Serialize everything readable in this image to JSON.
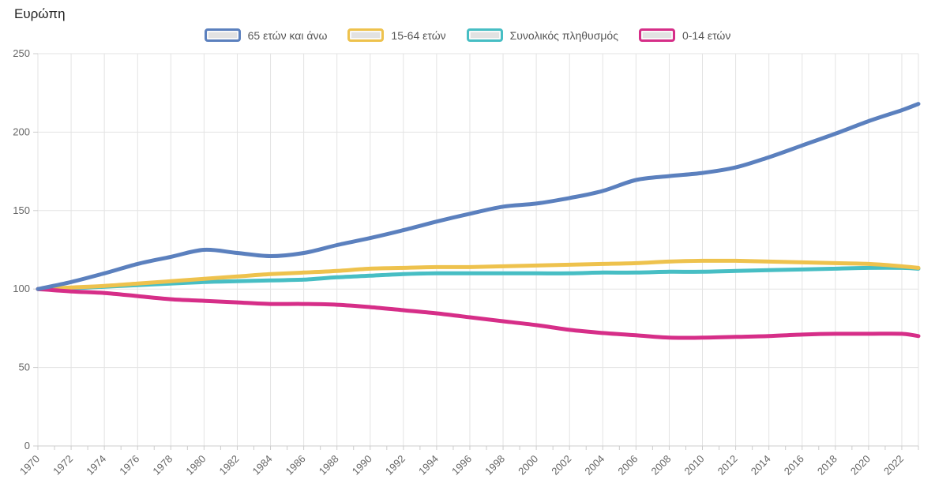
{
  "title": "Ευρώπη",
  "legend": {
    "position": "top",
    "items": [
      {
        "label": "65 ετών και άνω",
        "color": "#5b80be"
      },
      {
        "label": "15-64 ετών",
        "color": "#eec24d"
      },
      {
        "label": "Συνολικός πληθυσμός",
        "color": "#47bec4"
      },
      {
        "label": "0-14 ετών",
        "color": "#d62e88"
      }
    ]
  },
  "chart_data": {
    "type": "line",
    "title": "Ευρώπη",
    "x": [
      1970,
      1972,
      1974,
      1976,
      1978,
      1980,
      1982,
      1984,
      1986,
      1988,
      1990,
      1992,
      1994,
      1996,
      1998,
      2000,
      2002,
      2004,
      2006,
      2008,
      2010,
      2012,
      2014,
      2016,
      2018,
      2020,
      2022,
      2023
    ],
    "x_tick_labels": [
      "1970",
      "1972",
      "1974",
      "1976",
      "1978",
      "1980",
      "1982",
      "1984",
      "1986",
      "1988",
      "1990",
      "1992",
      "1994",
      "1996",
      "1998",
      "2000",
      "2002",
      "2004",
      "2006",
      "2008",
      "2010",
      "2012",
      "2014",
      "2016",
      "2018",
      "2020",
      "2022"
    ],
    "x_minor_tick_every_years": 1,
    "y_ticks": [
      0,
      50,
      100,
      150,
      200,
      250
    ],
    "xlim": [
      1970,
      2023
    ],
    "ylim": [
      0,
      250
    ],
    "grid": true,
    "legend_position": "top",
    "xlabel": "",
    "ylabel": "",
    "series": [
      {
        "name": "65 ετών και άνω",
        "color": "#5b80be",
        "values": [
          100,
          104.5,
          110,
          116,
          120.5,
          125,
          123,
          121,
          123,
          128,
          132.5,
          137.5,
          143,
          148,
          152.5,
          154.5,
          158,
          162.5,
          169.5,
          172,
          174,
          177.5,
          184,
          191.5,
          199,
          207,
          214,
          218
        ]
      },
      {
        "name": "15-64 ετών",
        "color": "#eec24d",
        "values": [
          100,
          101,
          102,
          103.5,
          105,
          106.5,
          108,
          109.5,
          110.5,
          111.5,
          113,
          113.5,
          114,
          114,
          114.5,
          115,
          115.5,
          116,
          116.5,
          117.5,
          118,
          118,
          117.5,
          117,
          116.5,
          116,
          114.5,
          113.5
        ]
      },
      {
        "name": "Συνολικός πληθυσμός",
        "color": "#47bec4",
        "values": [
          100,
          100.5,
          101.5,
          102.5,
          103.5,
          104.5,
          105,
          105.5,
          106,
          107.5,
          108.5,
          109.5,
          110,
          110,
          110,
          110,
          110,
          110.5,
          110.5,
          111,
          111,
          111.5,
          112,
          112.5,
          113,
          113.5,
          113.5,
          113
        ]
      },
      {
        "name": "0-14 ετών",
        "color": "#d62e88",
        "values": [
          100,
          98.5,
          97.5,
          95.5,
          93.5,
          92.5,
          91.5,
          90.5,
          90.5,
          90,
          88.5,
          86.5,
          84.5,
          82,
          79.5,
          77,
          74,
          72,
          70.5,
          69,
          69,
          69.5,
          70,
          71,
          71.5,
          71.5,
          71.5,
          70
        ]
      }
    ]
  },
  "colors": {
    "background": "#ffffff",
    "grid": "#e3e3e3",
    "axis": "#cccccc",
    "tick_text": "#666666",
    "title_text": "#222222",
    "legend_text": "#555555"
  }
}
